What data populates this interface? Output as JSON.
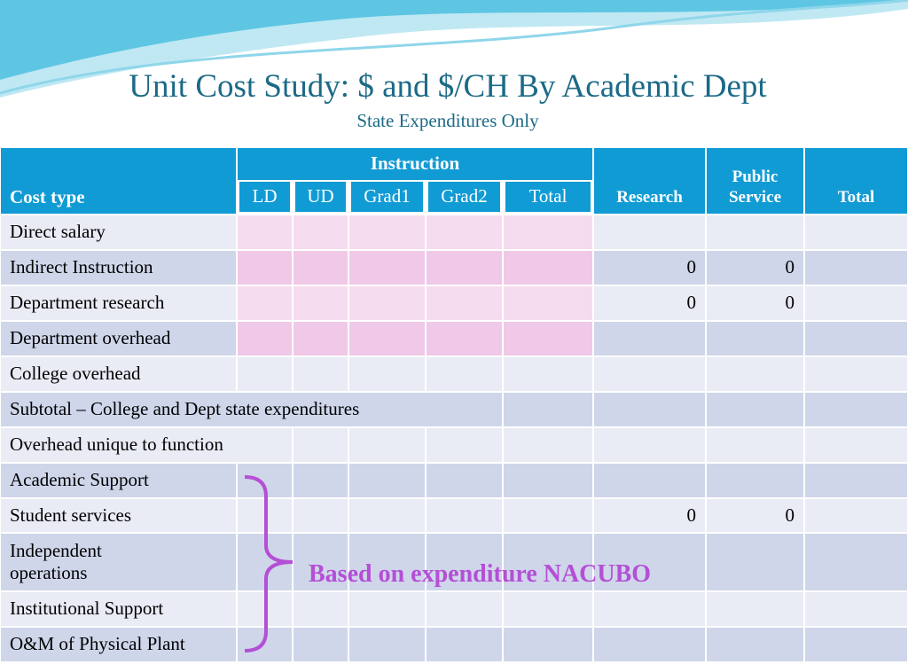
{
  "title": "Unit Cost Study: $ and $/CH By Academic Dept",
  "subtitle": "State Expenditures Only",
  "table": {
    "header": {
      "cost_type": "Cost type",
      "instruction": "Instruction",
      "instruction_columns": [
        "LD",
        "UD",
        "Grad1",
        "Grad2",
        "Total"
      ],
      "research": "Research",
      "public_service": "Public Service",
      "total": "Total"
    },
    "rows": [
      {
        "cost_type": "Direct salary"
      },
      {
        "cost_type": "Indirect Instruction",
        "research": 0,
        "public_service": 0
      },
      {
        "cost_type": "Department research",
        "research": 0,
        "public_service": 0
      },
      {
        "cost_type": "Department overhead"
      },
      {
        "cost_type": "College overhead"
      },
      {
        "cost_type": "Subtotal – College and Dept state expenditures"
      },
      {
        "cost_type": "Overhead unique to function"
      },
      {
        "cost_type": "Academic Support"
      },
      {
        "cost_type": "Student services",
        "research": 0,
        "public_service": 0
      },
      {
        "cost_type": "Independent operations"
      },
      {
        "cost_type": "Institutional Support"
      },
      {
        "cost_type": "O&M of Physical Plant"
      }
    ]
  },
  "annotation": "Based on expenditure NACUBO"
}
